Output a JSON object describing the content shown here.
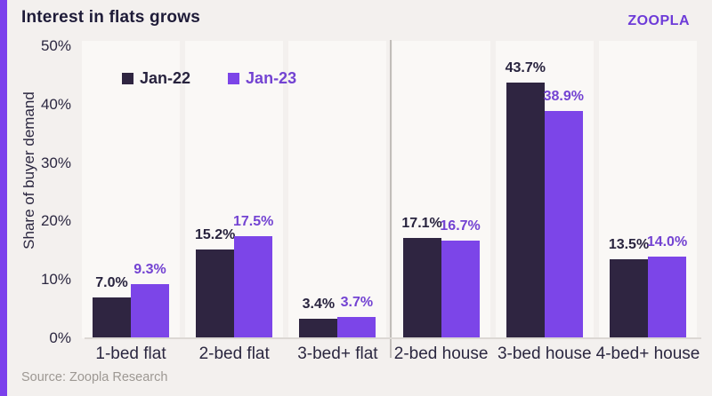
{
  "header": {
    "title": "Interest in flats grows",
    "logo_text": "zoopla"
  },
  "footer": {
    "source": "Source: Zoopla Research"
  },
  "colors": {
    "page_background": "#F3F0EE",
    "band_background": "#FAF8F6",
    "accent_stripe": "#7B40EC",
    "dark_series": "#2F2541",
    "purple_series": "#7C45E8",
    "dark_text": "#28233E",
    "purple_text": "#7343D2",
    "logo_purple": "#6D3BD8"
  },
  "chart_data": {
    "type": "bar",
    "title": "Interest in flats grows",
    "xlabel": "",
    "ylabel": "Share of buyer demand",
    "ylim": [
      0,
      50
    ],
    "yticks": [
      0,
      10,
      20,
      30,
      40,
      50
    ],
    "ytick_suffix": "%",
    "grid": false,
    "legend_position": "top-left-inside",
    "categories": [
      "1-bed flat",
      "2-bed flat",
      "3-bed+ flat",
      "2-bed house",
      "3-bed house",
      "4-bed+ house"
    ],
    "divider_after_index": 2,
    "value_label_decimals": 1,
    "value_label_suffix": "%",
    "series": [
      {
        "name": "Jan-22",
        "bar_color": "#2F2541",
        "label_color": "#28233E",
        "values": [
          7.0,
          15.2,
          3.4,
          17.1,
          43.7,
          13.5
        ]
      },
      {
        "name": "Jan-23",
        "bar_color": "#7C45E8",
        "label_color": "#7343D2",
        "values": [
          9.3,
          17.5,
          3.7,
          16.7,
          38.9,
          14.0
        ]
      }
    ]
  }
}
